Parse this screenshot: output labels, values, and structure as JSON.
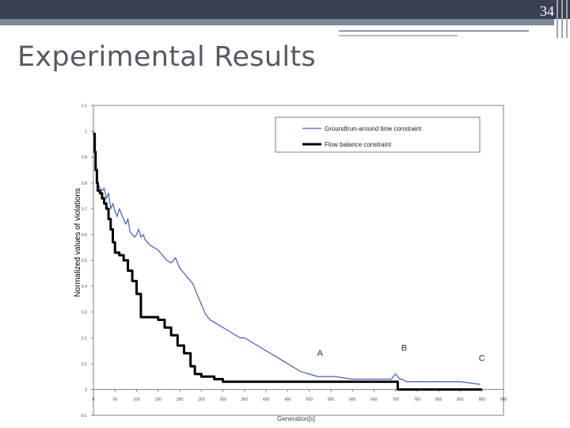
{
  "slide": {
    "number": "34",
    "title": "Experimental Results"
  },
  "colors": {
    "topbar": "#3b3f52",
    "accent_line": "#7d8a99",
    "series_blue": "#4a5db5",
    "series_black": "#000000"
  },
  "chart_data": {
    "type": "line",
    "title": "",
    "xlabel": "Generation[s]",
    "ylabel": "Normalized values of violations",
    "xlim": [
      0,
      950
    ],
    "ylim": [
      -0.1,
      1.1
    ],
    "xticks": [
      "0",
      "50",
      "100",
      "150",
      "200",
      "250",
      "300",
      "350",
      "400",
      "450",
      "500",
      "550",
      "600",
      "650",
      "700",
      "750",
      "800",
      "850",
      "900",
      "950"
    ],
    "yticks": [
      "-0.1",
      "0",
      "0.1",
      "0.2",
      "0.3",
      "0.4",
      "0.5",
      "0.6",
      "0.7",
      "0.8",
      "0.9",
      "1",
      "1.1"
    ],
    "grid": false,
    "legend_position": "top-right",
    "annotations": [
      {
        "text": "A",
        "x": 525,
        "y": 0.13
      },
      {
        "text": "B",
        "x": 720,
        "y": 0.15
      },
      {
        "text": "C",
        "x": 900,
        "y": 0.11
      }
    ],
    "series": [
      {
        "name": "Groundtrun-around time constraint",
        "x": [
          0,
          3,
          5,
          8,
          10,
          15,
          20,
          25,
          30,
          35,
          40,
          45,
          50,
          55,
          60,
          65,
          70,
          75,
          80,
          85,
          90,
          95,
          100,
          105,
          110,
          115,
          120,
          125,
          130,
          140,
          150,
          160,
          170,
          180,
          190,
          200,
          210,
          220,
          230,
          240,
          250,
          260,
          270,
          280,
          290,
          300,
          310,
          320,
          330,
          340,
          350,
          360,
          370,
          380,
          390,
          400,
          420,
          440,
          460,
          480,
          500,
          520,
          560,
          600,
          650,
          690,
          700,
          705,
          710,
          715,
          725,
          750,
          800,
          850,
          895
        ],
        "y": [
          1.0,
          0.96,
          0.9,
          0.84,
          0.8,
          0.78,
          0.77,
          0.78,
          0.74,
          0.76,
          0.7,
          0.72,
          0.69,
          0.67,
          0.7,
          0.68,
          0.66,
          0.64,
          0.66,
          0.61,
          0.6,
          0.59,
          0.6,
          0.62,
          0.59,
          0.6,
          0.58,
          0.57,
          0.56,
          0.55,
          0.54,
          0.52,
          0.5,
          0.49,
          0.51,
          0.47,
          0.45,
          0.43,
          0.41,
          0.37,
          0.33,
          0.29,
          0.27,
          0.26,
          0.25,
          0.24,
          0.23,
          0.22,
          0.21,
          0.2,
          0.2,
          0.19,
          0.18,
          0.17,
          0.16,
          0.15,
          0.13,
          0.11,
          0.09,
          0.07,
          0.06,
          0.05,
          0.05,
          0.04,
          0.04,
          0.04,
          0.06,
          0.05,
          0.04,
          0.04,
          0.03,
          0.03,
          0.03,
          0.03,
          0.02
        ]
      },
      {
        "name": "Flow balance constraint",
        "x": [
          0,
          3,
          5,
          8,
          10,
          15,
          20,
          25,
          30,
          35,
          40,
          45,
          50,
          60,
          70,
          80,
          90,
          100,
          110,
          150,
          165,
          180,
          195,
          210,
          225,
          235,
          250,
          280,
          300,
          400,
          500,
          600,
          650,
          700,
          705,
          760,
          900
        ],
        "y": [
          0.99,
          0.92,
          0.85,
          0.8,
          0.77,
          0.76,
          0.74,
          0.72,
          0.7,
          0.66,
          0.62,
          0.57,
          0.53,
          0.52,
          0.5,
          0.46,
          0.42,
          0.37,
          0.28,
          0.27,
          0.24,
          0.21,
          0.17,
          0.14,
          0.09,
          0.06,
          0.05,
          0.04,
          0.03,
          0.03,
          0.03,
          0.03,
          0.03,
          0.03,
          0.0,
          0.0,
          0.0
        ]
      }
    ]
  }
}
